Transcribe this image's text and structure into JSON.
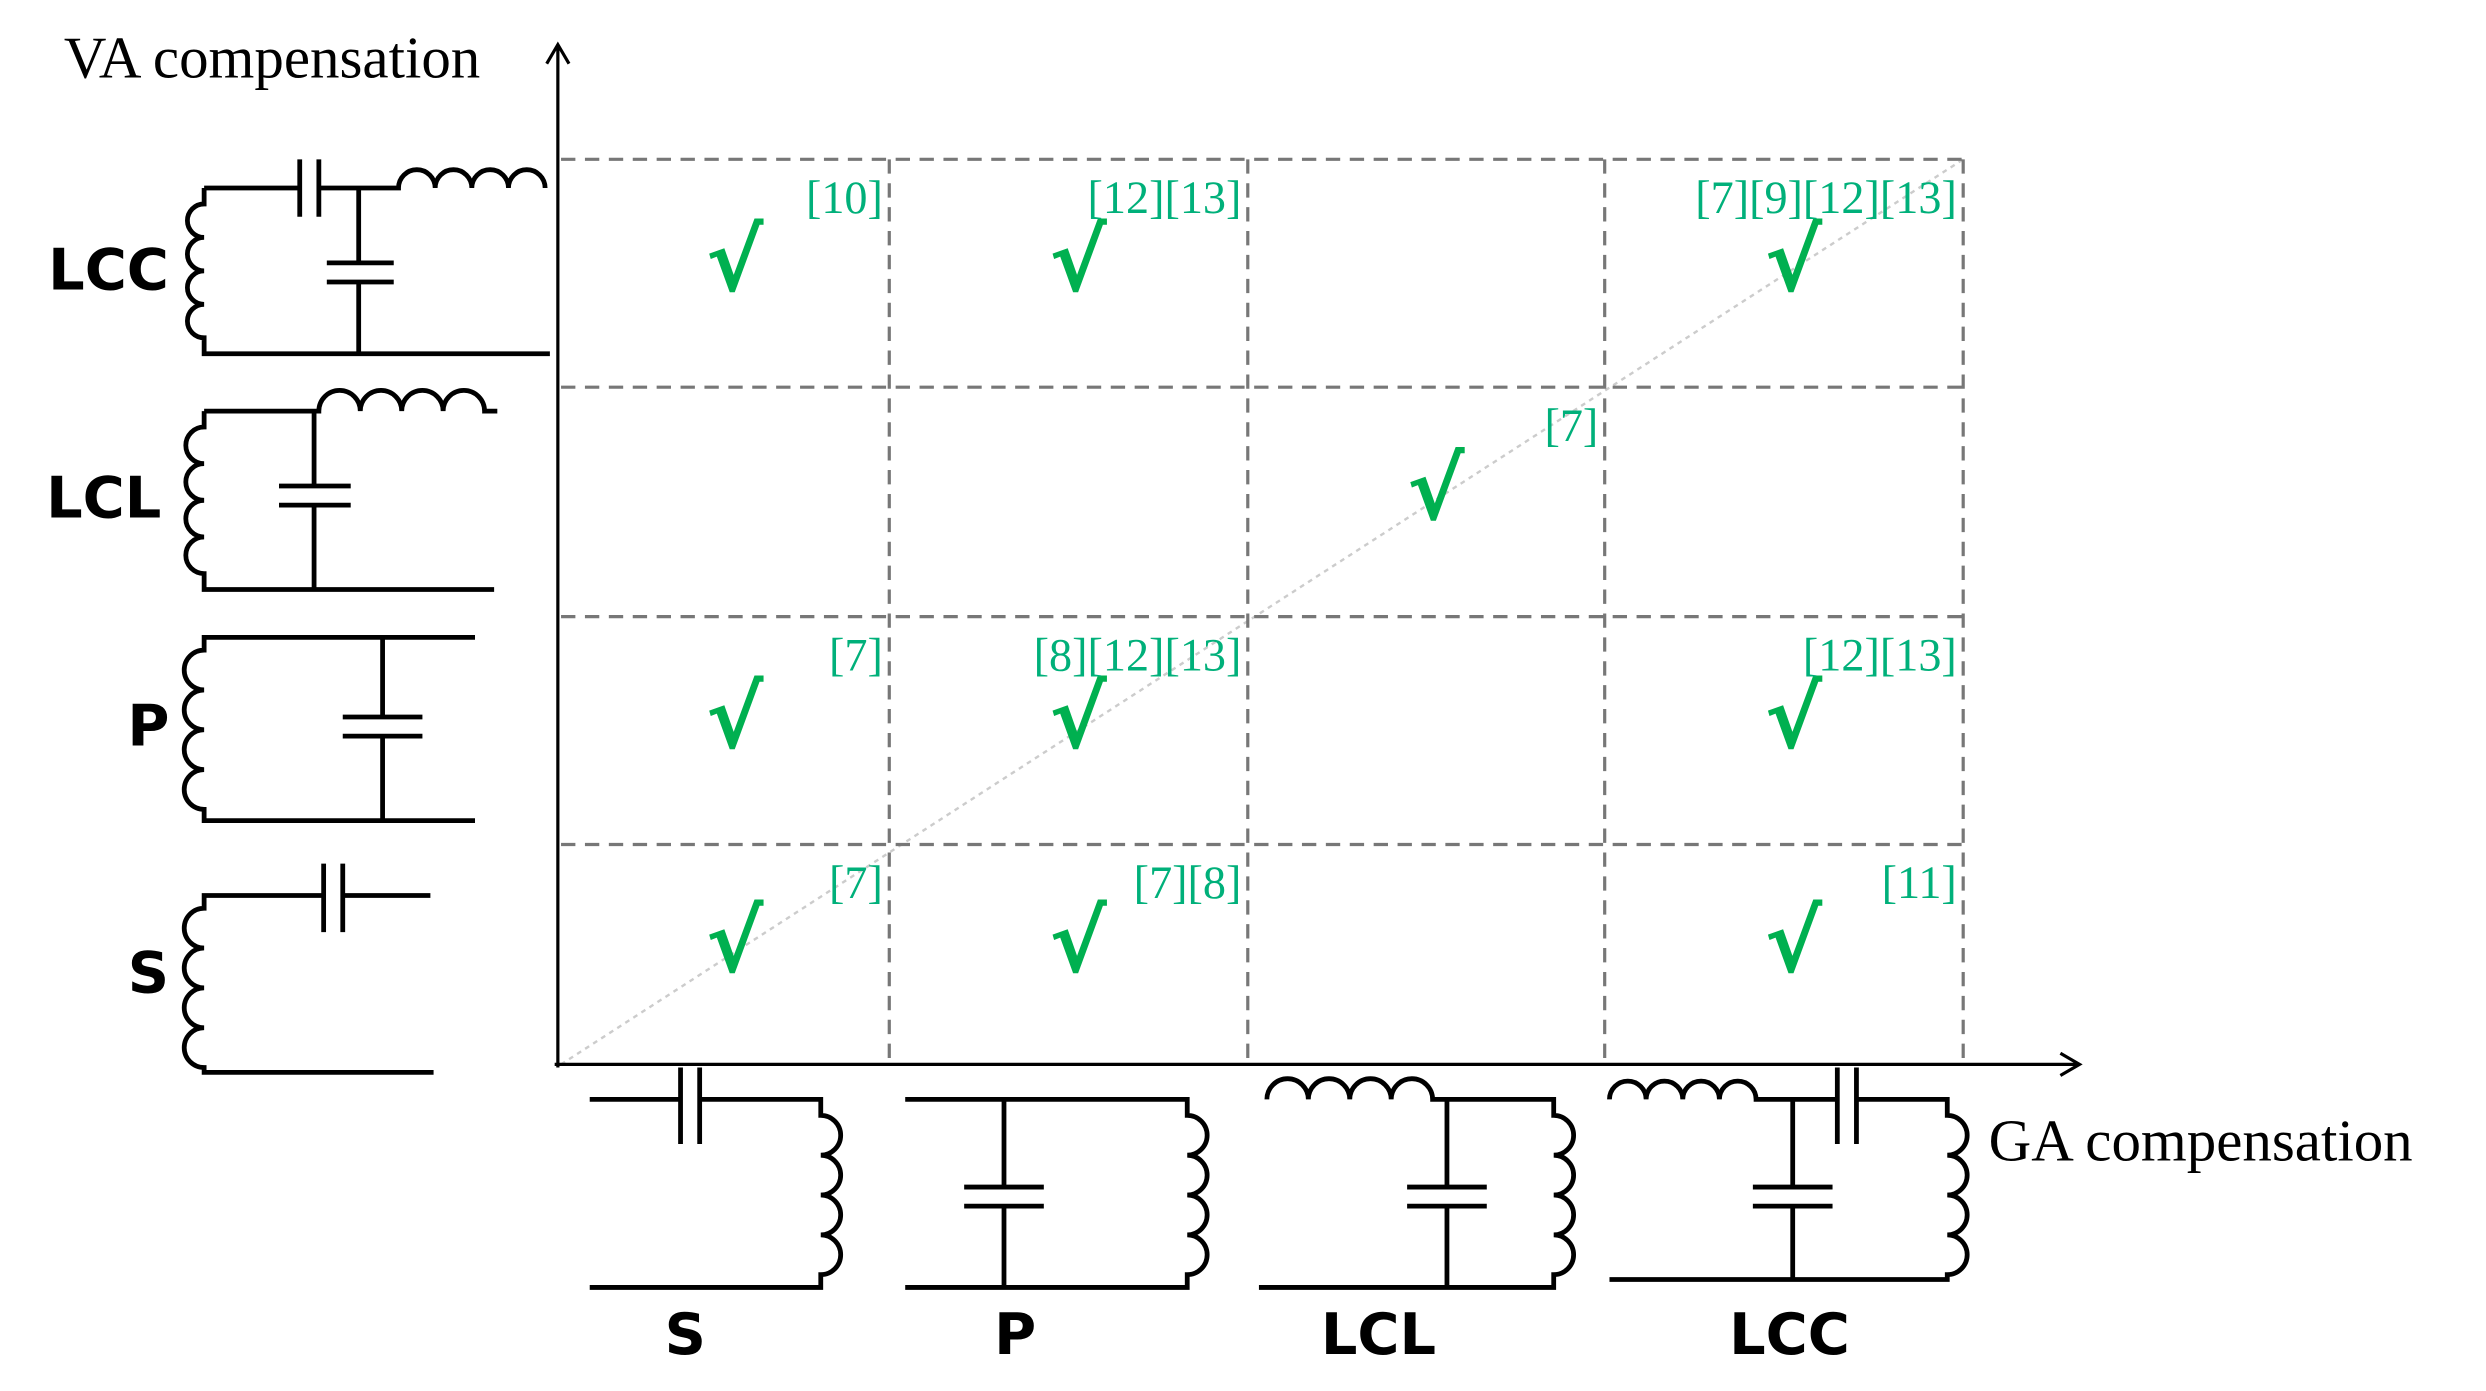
{
  "y_axis_label": "VA compensation",
  "x_axis_label": "GA compensation",
  "rows": [
    "LCC",
    "LCL",
    "P",
    "S"
  ],
  "columns": [
    "S",
    "P",
    "LCL",
    "LCC"
  ],
  "cells": [
    [
      {
        "check": "√",
        "refs": "[10]"
      },
      {
        "check": "√",
        "refs": "[12][13]"
      },
      null,
      {
        "check": "√",
        "refs": "[7][9][12][13]"
      }
    ],
    [
      null,
      null,
      {
        "check": "√",
        "refs": "[7]"
      },
      null
    ],
    [
      {
        "check": "√",
        "refs": "[7]"
      },
      {
        "check": "√",
        "refs": "[8][12][13]"
      },
      null,
      {
        "check": "√",
        "refs": "[12][13]"
      }
    ],
    [
      {
        "check": "√",
        "refs": "[7]"
      },
      {
        "check": "√",
        "refs": "[7][8]"
      },
      null,
      {
        "check": "√",
        "refs": "[11]"
      }
    ]
  ]
}
